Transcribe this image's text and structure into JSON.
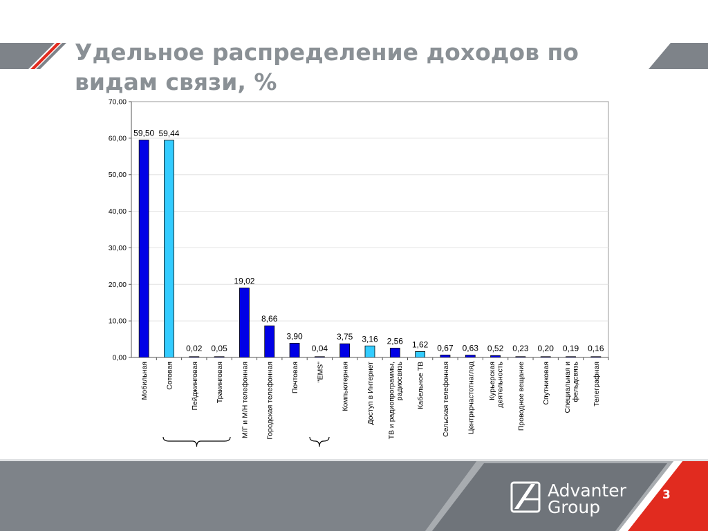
{
  "slide": {
    "title": "Удельное распределение доходов по видам связи, %",
    "page_number": "3",
    "logo_line1": "Advanter",
    "logo_line2": "Group"
  },
  "colors": {
    "bar_dark": "#0000e6",
    "bar_light": "#33ccff",
    "title": "#8a9095",
    "band_gray": "#7e8389",
    "accent_red": "#e12b1f"
  },
  "chart_data": {
    "type": "bar",
    "title": "",
    "xlabel": "",
    "ylabel": "",
    "ylim": [
      0,
      70
    ],
    "yticks": [
      "0,00",
      "10,00",
      "20,00",
      "30,00",
      "40,00",
      "50,00",
      "60,00",
      "70,00"
    ],
    "grid": true,
    "categories": [
      "Мобильная",
      "Сотовая",
      "Пейджинговая",
      "Тракинговая",
      "М/Г и М/Н телефонная",
      "Городская телефонная",
      "Почтовая",
      "\"EMS\"",
      "Компьютерная",
      "Доступ в Интернет",
      "ТВ и радиопрограммы, радиосвязь",
      "Кабельное ТВ",
      "Сельская телефонная",
      "Центркрчастотнагляд",
      "Курьерская деятельность",
      "Проводное вещание",
      "Спутниковая",
      "Специальная и фельдсвязь",
      "Телеграфная"
    ],
    "values": [
      59.5,
      59.44,
      0.02,
      0.05,
      19.02,
      8.66,
      3.9,
      0.04,
      3.75,
      3.16,
      2.56,
      1.62,
      0.67,
      0.63,
      0.52,
      0.23,
      0.2,
      0.19,
      0.16
    ],
    "value_labels": [
      "59,50",
      "59,44",
      "0,02",
      "0,05",
      "19,02",
      "8,66",
      "3,90",
      "0,04",
      "3,75",
      "3,16",
      "2,56",
      "1,62",
      "0,67",
      "0,63",
      "0,52",
      "0,23",
      "0,20",
      "0,19",
      "0,16"
    ],
    "bar_colors": [
      "dark",
      "light",
      "dark",
      "dark",
      "dark",
      "dark",
      "dark",
      "dark",
      "dark",
      "light",
      "dark",
      "light",
      "dark",
      "dark",
      "dark",
      "dark",
      "dark",
      "dark",
      "dark"
    ]
  }
}
